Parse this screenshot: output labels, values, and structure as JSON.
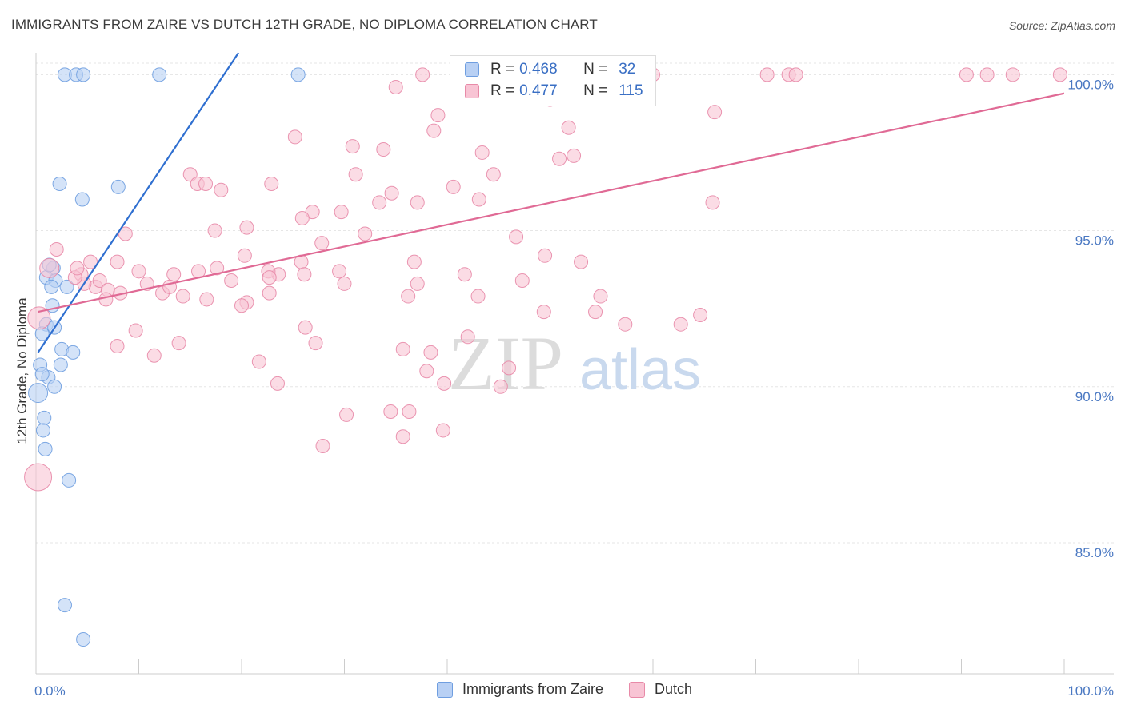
{
  "header": {
    "title": "IMMIGRANTS FROM ZAIRE VS DUTCH 12TH GRADE, NO DIPLOMA CORRELATION CHART",
    "source": "Source: ZipAtlas.com"
  },
  "legend": {
    "r_label": "R =",
    "n_label": "N =",
    "series": [
      {
        "r": "0.468",
        "n": "32",
        "fill": "#b8d0f4",
        "stroke": "#6f9ee0"
      },
      {
        "r": "0.477",
        "n": "115",
        "fill": "#f8c4d4",
        "stroke": "#e88aa8"
      }
    ]
  },
  "watermark": {
    "zip": "ZIP",
    "atlas": "atlas"
  },
  "chart_data": {
    "type": "scatter",
    "title": "IMMIGRANTS FROM ZAIRE VS DUTCH 12TH GRADE, NO DIPLOMA CORRELATION CHART",
    "xlabel": "",
    "ylabel": "12th Grade, No Diploma",
    "xlim": [
      0,
      100
    ],
    "ylim": [
      80.8,
      100.7
    ],
    "x_tick_labels": [
      "0.0%",
      "100.0%"
    ],
    "y_ticks": [
      85,
      90,
      95,
      100
    ],
    "y_tick_labels": [
      "85.0%",
      "90.0%",
      "95.0%",
      "100.0%"
    ],
    "grid": true,
    "legend_position": "bottom-center",
    "series": [
      {
        "name": "Immigrants from Zaire",
        "color": "#6f9ee0",
        "fill": "#b8d0f4",
        "trend": {
          "x": [
            0.2,
            19.7
          ],
          "y": [
            91.1,
            100.7
          ]
        },
        "points": [
          [
            2.8,
            100.0
          ],
          [
            3.9,
            100.0
          ],
          [
            4.6,
            100.0
          ],
          [
            12.0,
            100.0
          ],
          [
            25.5,
            100.0
          ],
          [
            2.3,
            96.5
          ],
          [
            8.0,
            96.4
          ],
          [
            4.5,
            96.0
          ],
          [
            1.7,
            93.8
          ],
          [
            1.0,
            93.5
          ],
          [
            1.9,
            93.4
          ],
          [
            3.0,
            93.2
          ],
          [
            1.5,
            93.2
          ],
          [
            1.6,
            92.6
          ],
          [
            1.0,
            92.0
          ],
          [
            1.8,
            91.9
          ],
          [
            0.6,
            91.7
          ],
          [
            2.5,
            91.2
          ],
          [
            3.6,
            91.1
          ],
          [
            0.4,
            90.7
          ],
          [
            2.4,
            90.7
          ],
          [
            1.2,
            90.3
          ],
          [
            1.8,
            90.0
          ],
          [
            0.2,
            89.8
          ],
          [
            0.8,
            89.0
          ],
          [
            0.7,
            88.6
          ],
          [
            0.9,
            88.0
          ],
          [
            3.2,
            87.0
          ],
          [
            2.8,
            83.0
          ],
          [
            4.6,
            81.9
          ],
          [
            0.6,
            90.4
          ],
          [
            1.3,
            93.9
          ]
        ]
      },
      {
        "name": "Dutch",
        "color": "#e88aa8",
        "fill": "#f8c4d4",
        "trend": {
          "x": [
            0.2,
            100.0
          ],
          "y": [
            92.4,
            99.4
          ]
        },
        "points": [
          [
            37.6,
            100.0
          ],
          [
            53.0,
            100.0
          ],
          [
            60.0,
            100.0
          ],
          [
            71.1,
            100.0
          ],
          [
            73.2,
            100.0
          ],
          [
            73.9,
            100.0
          ],
          [
            90.5,
            100.0
          ],
          [
            92.5,
            100.0
          ],
          [
            95.0,
            100.0
          ],
          [
            99.6,
            100.0
          ],
          [
            35.0,
            99.6
          ],
          [
            50.0,
            99.2
          ],
          [
            66.0,
            98.8
          ],
          [
            39.1,
            98.7
          ],
          [
            51.8,
            98.3
          ],
          [
            38.7,
            98.2
          ],
          [
            25.2,
            98.0
          ],
          [
            30.8,
            97.7
          ],
          [
            33.8,
            97.6
          ],
          [
            50.9,
            97.3
          ],
          [
            43.4,
            97.5
          ],
          [
            52.3,
            97.4
          ],
          [
            15.0,
            96.8
          ],
          [
            31.1,
            96.8
          ],
          [
            44.5,
            96.8
          ],
          [
            15.7,
            96.5
          ],
          [
            16.5,
            96.5
          ],
          [
            22.9,
            96.5
          ],
          [
            18.0,
            96.3
          ],
          [
            40.6,
            96.4
          ],
          [
            34.6,
            96.2
          ],
          [
            43.1,
            96.0
          ],
          [
            33.4,
            95.9
          ],
          [
            26.9,
            95.6
          ],
          [
            29.7,
            95.6
          ],
          [
            65.8,
            95.9
          ],
          [
            37.1,
            95.9
          ],
          [
            25.9,
            95.4
          ],
          [
            20.5,
            95.1
          ],
          [
            17.4,
            95.0
          ],
          [
            32.0,
            94.9
          ],
          [
            8.7,
            94.9
          ],
          [
            46.7,
            94.8
          ],
          [
            27.8,
            94.6
          ],
          [
            25.8,
            94.0
          ],
          [
            20.3,
            94.2
          ],
          [
            36.8,
            94.0
          ],
          [
            49.5,
            94.2
          ],
          [
            53.0,
            94.0
          ],
          [
            7.9,
            94.0
          ],
          [
            5.3,
            94.0
          ],
          [
            2.0,
            94.4
          ],
          [
            13.4,
            93.6
          ],
          [
            23.6,
            93.6
          ],
          [
            17.6,
            93.8
          ],
          [
            15.8,
            93.7
          ],
          [
            22.6,
            93.7
          ],
          [
            26.1,
            93.6
          ],
          [
            29.5,
            93.7
          ],
          [
            10.0,
            93.7
          ],
          [
            4.4,
            93.6
          ],
          [
            5.8,
            93.2
          ],
          [
            6.2,
            93.4
          ],
          [
            4.7,
            93.3
          ],
          [
            3.8,
            93.5
          ],
          [
            7.0,
            93.1
          ],
          [
            8.2,
            93.0
          ],
          [
            12.3,
            93.0
          ],
          [
            10.8,
            93.3
          ],
          [
            13.0,
            93.2
          ],
          [
            19.0,
            93.4
          ],
          [
            22.7,
            93.5
          ],
          [
            37.1,
            93.3
          ],
          [
            47.3,
            93.4
          ],
          [
            6.8,
            92.8
          ],
          [
            16.6,
            92.8
          ],
          [
            20.5,
            92.7
          ],
          [
            20.0,
            92.6
          ],
          [
            22.7,
            93.0
          ],
          [
            36.2,
            92.9
          ],
          [
            43.0,
            92.9
          ],
          [
            54.9,
            92.9
          ],
          [
            49.4,
            92.4
          ],
          [
            57.3,
            92.0
          ],
          [
            62.7,
            92.0
          ],
          [
            9.7,
            91.8
          ],
          [
            26.2,
            91.9
          ],
          [
            42.0,
            91.6
          ],
          [
            7.9,
            91.3
          ],
          [
            13.9,
            91.4
          ],
          [
            27.2,
            91.4
          ],
          [
            11.5,
            91.0
          ],
          [
            35.7,
            91.2
          ],
          [
            38.4,
            91.1
          ],
          [
            21.7,
            90.8
          ],
          [
            46.0,
            90.6
          ],
          [
            38.0,
            90.5
          ],
          [
            23.5,
            90.1
          ],
          [
            39.7,
            90.1
          ],
          [
            45.2,
            90.0
          ],
          [
            30.2,
            89.1
          ],
          [
            34.5,
            89.2
          ],
          [
            36.3,
            89.2
          ],
          [
            27.9,
            88.1
          ],
          [
            35.7,
            88.4
          ],
          [
            39.6,
            88.6
          ],
          [
            0.2,
            87.1
          ],
          [
            0.3,
            92.2
          ],
          [
            1.3,
            93.8
          ],
          [
            4.0,
            93.8
          ],
          [
            14.3,
            92.9
          ],
          [
            30.0,
            93.3
          ],
          [
            41.7,
            93.6
          ],
          [
            54.4,
            92.4
          ],
          [
            64.6,
            92.3
          ]
        ]
      }
    ]
  }
}
